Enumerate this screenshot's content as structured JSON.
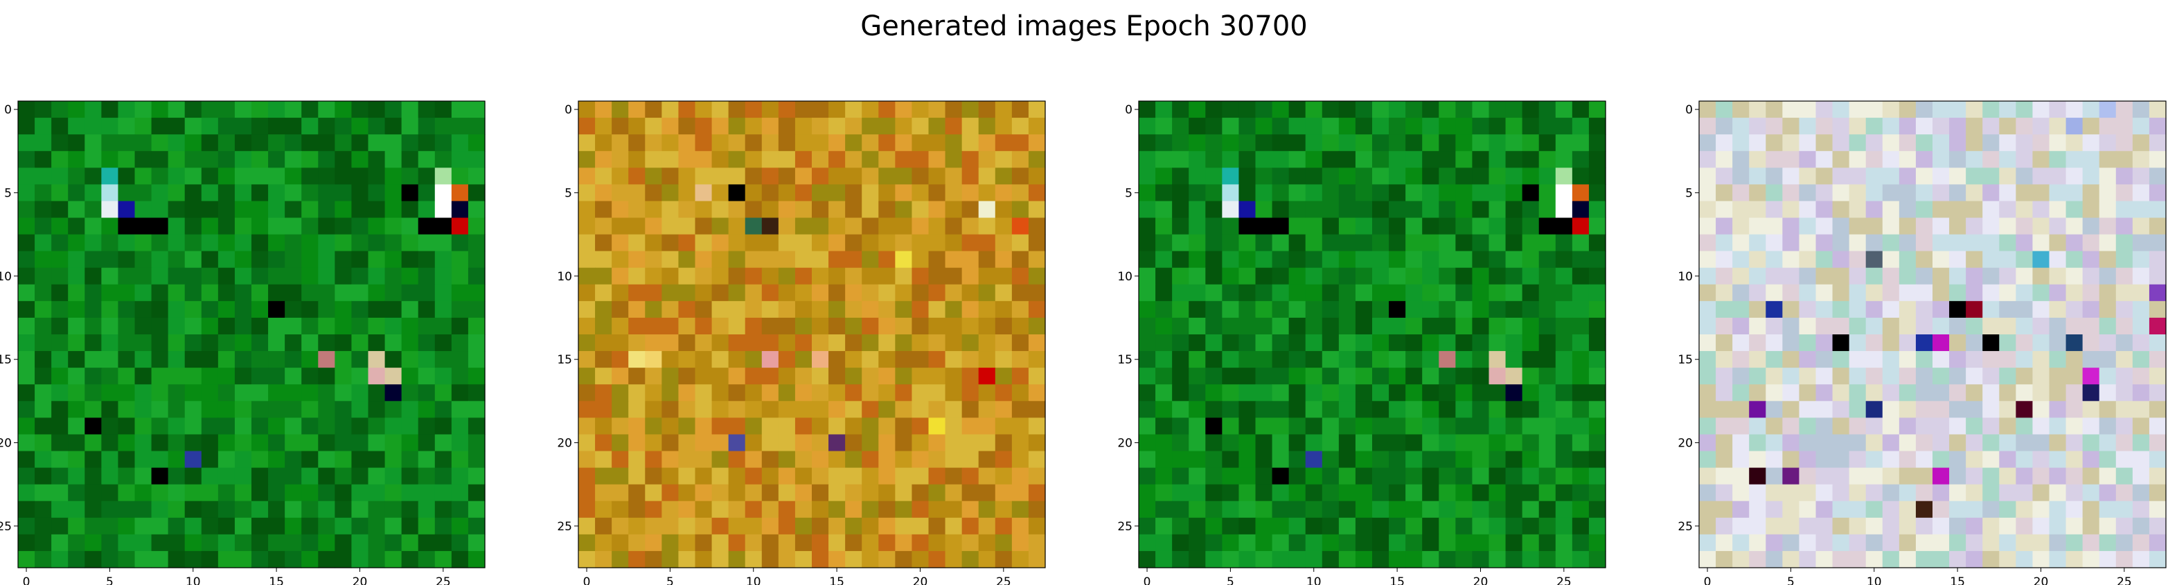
{
  "title": "Generated images Epoch 30700",
  "chart_data": {
    "type": "heatmap",
    "title": "Generated images Epoch 30700",
    "description_units": "pixel grid 28x28 per image, integer pixel indices on axes",
    "grid": false,
    "xlim": [
      -0.5,
      27.5
    ],
    "ylim": [
      27.5,
      -0.5
    ],
    "x_ticks": [
      0,
      5,
      10,
      15,
      20,
      25
    ],
    "y_ticks": [
      0,
      5,
      10,
      15,
      20,
      25
    ],
    "x_tick_labels": [
      "0",
      "5",
      "10",
      "15",
      "20",
      "25"
    ],
    "y_tick_labels": [
      "0",
      "5",
      "10",
      "15",
      "20",
      "25"
    ],
    "images": [
      {
        "palette": [
          "#0a7f1a",
          "#078c12",
          "#16a020",
          "#055f10",
          "#0f9a2a",
          "#06701a",
          "#1aa82e",
          "#04560c"
        ],
        "features": [
          {
            "row": 5,
            "col": 5,
            "color": "#aee3e8"
          },
          {
            "row": 6,
            "col": 5,
            "color": "#e8f0f4"
          },
          {
            "row": 6,
            "col": 6,
            "color": "#1313a0"
          },
          {
            "row": 4,
            "col": 5,
            "color": "#19b3a5"
          },
          {
            "row": 7,
            "col": 6,
            "color": "#000000"
          },
          {
            "row": 7,
            "col": 7,
            "color": "#000000"
          },
          {
            "row": 7,
            "col": 8,
            "color": "#000000"
          },
          {
            "row": 4,
            "col": 25,
            "color": "#a8e2a0"
          },
          {
            "row": 5,
            "col": 25,
            "color": "#ffffff"
          },
          {
            "row": 5,
            "col": 26,
            "color": "#d96010"
          },
          {
            "row": 6,
            "col": 25,
            "color": "#ffffff"
          },
          {
            "row": 6,
            "col": 26,
            "color": "#000030"
          },
          {
            "row": 7,
            "col": 25,
            "color": "#000000"
          },
          {
            "row": 7,
            "col": 26,
            "color": "#cc0000"
          },
          {
            "row": 7,
            "col": 24,
            "color": "#000000"
          },
          {
            "row": 5,
            "col": 23,
            "color": "#000000"
          },
          {
            "row": 15,
            "col": 18,
            "color": "#c27a7a"
          },
          {
            "row": 15,
            "col": 21,
            "color": "#d9caa0"
          },
          {
            "row": 16,
            "col": 21,
            "color": "#e0b0b0"
          },
          {
            "row": 16,
            "col": 22,
            "color": "#d9caa0"
          },
          {
            "row": 17,
            "col": 22,
            "color": "#000030"
          },
          {
            "row": 21,
            "col": 10,
            "color": "#2a3aa0"
          },
          {
            "row": 22,
            "col": 8,
            "color": "#000000"
          },
          {
            "row": 12,
            "col": 15,
            "color": "#000000"
          },
          {
            "row": 19,
            "col": 4,
            "color": "#000000"
          }
        ]
      },
      {
        "palette": [
          "#c79a1a",
          "#b88a10",
          "#d4a42a",
          "#9a8a10",
          "#e0a030",
          "#a86e0e",
          "#c46a14",
          "#d9b83a"
        ],
        "features": [
          {
            "row": 5,
            "col": 9,
            "color": "#000000"
          },
          {
            "row": 5,
            "col": 7,
            "color": "#e9c08a"
          },
          {
            "row": 7,
            "col": 11,
            "color": "#3a2010"
          },
          {
            "row": 7,
            "col": 10,
            "color": "#2a6a4a"
          },
          {
            "row": 15,
            "col": 3,
            "color": "#f2e27a"
          },
          {
            "row": 15,
            "col": 4,
            "color": "#f2d46a"
          },
          {
            "row": 15,
            "col": 11,
            "color": "#e8a0a0"
          },
          {
            "row": 15,
            "col": 14,
            "color": "#f0b080"
          },
          {
            "row": 16,
            "col": 24,
            "color": "#d00000"
          },
          {
            "row": 20,
            "col": 9,
            "color": "#4a4aa0"
          },
          {
            "row": 20,
            "col": 15,
            "color": "#5a2a6a"
          },
          {
            "row": 19,
            "col": 21,
            "color": "#f2e030"
          },
          {
            "row": 9,
            "col": 19,
            "color": "#f0e040"
          },
          {
            "row": 6,
            "col": 24,
            "color": "#f0f0d0"
          },
          {
            "row": 7,
            "col": 26,
            "color": "#e05010"
          }
        ]
      },
      {
        "palette": [
          "#0a7f1a",
          "#078c12",
          "#16a020",
          "#055f10",
          "#0f9a2a",
          "#06701a",
          "#1aa82e",
          "#04560c"
        ],
        "features": [
          {
            "row": 5,
            "col": 5,
            "color": "#aee3e8"
          },
          {
            "row": 6,
            "col": 5,
            "color": "#e8f0f4"
          },
          {
            "row": 6,
            "col": 6,
            "color": "#1313a0"
          },
          {
            "row": 4,
            "col": 5,
            "color": "#19b3a5"
          },
          {
            "row": 7,
            "col": 6,
            "color": "#000000"
          },
          {
            "row": 7,
            "col": 7,
            "color": "#000000"
          },
          {
            "row": 7,
            "col": 8,
            "color": "#000000"
          },
          {
            "row": 4,
            "col": 25,
            "color": "#a8e2a0"
          },
          {
            "row": 5,
            "col": 25,
            "color": "#ffffff"
          },
          {
            "row": 5,
            "col": 26,
            "color": "#d96010"
          },
          {
            "row": 6,
            "col": 25,
            "color": "#ffffff"
          },
          {
            "row": 6,
            "col": 26,
            "color": "#000030"
          },
          {
            "row": 7,
            "col": 25,
            "color": "#000000"
          },
          {
            "row": 7,
            "col": 26,
            "color": "#cc0000"
          },
          {
            "row": 7,
            "col": 24,
            "color": "#000000"
          },
          {
            "row": 5,
            "col": 23,
            "color": "#000000"
          },
          {
            "row": 15,
            "col": 18,
            "color": "#c27a7a"
          },
          {
            "row": 15,
            "col": 21,
            "color": "#d9caa0"
          },
          {
            "row": 16,
            "col": 21,
            "color": "#e0b0b0"
          },
          {
            "row": 16,
            "col": 22,
            "color": "#d9caa0"
          },
          {
            "row": 17,
            "col": 22,
            "color": "#000030"
          },
          {
            "row": 21,
            "col": 10,
            "color": "#2a3aa0"
          },
          {
            "row": 22,
            "col": 8,
            "color": "#000000"
          },
          {
            "row": 12,
            "col": 15,
            "color": "#000000"
          },
          {
            "row": 19,
            "col": 4,
            "color": "#000000"
          }
        ]
      },
      {
        "palette": [
          "#e6e2c6",
          "#d8d0e6",
          "#c8e0e8",
          "#e8e8f6",
          "#d0c8a0",
          "#b8c8d8",
          "#f0f0e0",
          "#c8b8e0",
          "#a8d8c8",
          "#e0d0d8"
        ],
        "features": [
          {
            "row": 12,
            "col": 4,
            "color": "#1a30a0"
          },
          {
            "row": 12,
            "col": 15,
            "color": "#000000"
          },
          {
            "row": 12,
            "col": 16,
            "color": "#900020"
          },
          {
            "row": 14,
            "col": 8,
            "color": "#000000"
          },
          {
            "row": 14,
            "col": 13,
            "color": "#1a30a0"
          },
          {
            "row": 14,
            "col": 14,
            "color": "#c010c0"
          },
          {
            "row": 14,
            "col": 17,
            "color": "#000000"
          },
          {
            "row": 14,
            "col": 22,
            "color": "#1a4070"
          },
          {
            "row": 16,
            "col": 23,
            "color": "#d020d0"
          },
          {
            "row": 17,
            "col": 23,
            "color": "#1a1a60"
          },
          {
            "row": 18,
            "col": 3,
            "color": "#7010a0"
          },
          {
            "row": 18,
            "col": 10,
            "color": "#1a2a80"
          },
          {
            "row": 18,
            "col": 19,
            "color": "#500020"
          },
          {
            "row": 22,
            "col": 3,
            "color": "#300010"
          },
          {
            "row": 22,
            "col": 5,
            "color": "#6a1a80"
          },
          {
            "row": 22,
            "col": 14,
            "color": "#c010c0"
          },
          {
            "row": 24,
            "col": 13,
            "color": "#402010"
          },
          {
            "row": 9,
            "col": 10,
            "color": "#506070"
          },
          {
            "row": 9,
            "col": 20,
            "color": "#40b0d0"
          },
          {
            "row": 13,
            "col": 27,
            "color": "#c01060"
          },
          {
            "row": 11,
            "col": 27,
            "color": "#8040c0"
          },
          {
            "row": 1,
            "col": 22,
            "color": "#a0b0e8"
          },
          {
            "row": 0,
            "col": 24,
            "color": "#b0c0f0"
          }
        ]
      }
    ]
  }
}
